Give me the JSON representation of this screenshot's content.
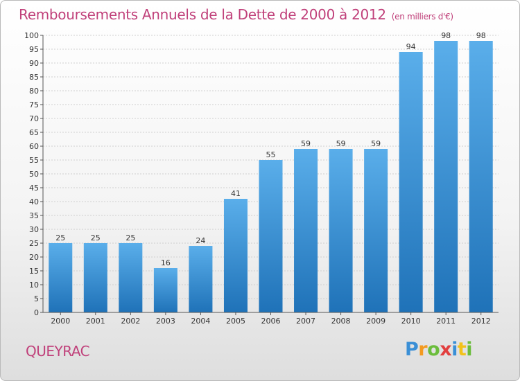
{
  "title": "Remboursements Annuels de la Dette de 2000 à 2012",
  "unit_note": "(en milliers d'€)",
  "commune": "QUEYRAC",
  "logo": [
    "P",
    "r",
    "o",
    "x",
    "i",
    "t",
    "i"
  ],
  "colors": {
    "title": "#c0407a",
    "bar_top": "#5aaeea",
    "bar_bottom": "#1f72b8",
    "grid": "#cfcfcf"
  },
  "chart_data": {
    "type": "bar",
    "categories": [
      "2000",
      "2001",
      "2002",
      "2003",
      "2004",
      "2005",
      "2006",
      "2007",
      "2008",
      "2009",
      "2010",
      "2011",
      "2012"
    ],
    "values": [
      25,
      25,
      25,
      16,
      24,
      41,
      55,
      59,
      59,
      59,
      94,
      98,
      98
    ],
    "data_labels": [
      "25",
      "25",
      "25",
      "16",
      "24",
      "41",
      "55",
      "59",
      "59",
      "59",
      "94",
      "98",
      "98"
    ],
    "title": "Remboursements Annuels de la Dette de 2000 à 2012",
    "ylim": [
      0,
      100
    ],
    "ytick_step": 5,
    "grid": true
  }
}
